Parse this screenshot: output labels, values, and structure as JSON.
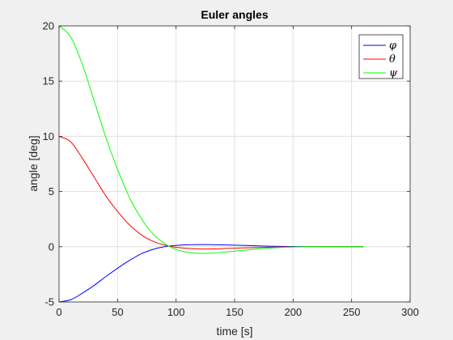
{
  "chart_data": {
    "type": "line",
    "title": "Euler angles",
    "xlabel": "time [s]",
    "ylabel": "angle [deg]",
    "xlim": [
      0,
      300
    ],
    "ylim": [
      -5,
      20
    ],
    "xticks": [
      "0",
      "50",
      "100",
      "150",
      "200",
      "250",
      "300"
    ],
    "yticks": [
      "-5",
      "0",
      "5",
      "10",
      "15",
      "20"
    ],
    "grid": true,
    "legend_position": "top-right",
    "series": [
      {
        "name": "φ",
        "color": "#0000ff",
        "x": [
          0,
          10,
          20,
          30,
          40,
          50,
          60,
          70,
          80,
          90,
          100,
          110,
          120,
          130,
          140,
          150,
          160,
          170,
          180,
          190,
          200,
          210,
          220,
          230,
          240,
          250,
          260
        ],
        "y": [
          -5.0,
          -4.8,
          -4.2,
          -3.5,
          -2.7,
          -1.95,
          -1.25,
          -0.65,
          -0.25,
          0.0,
          0.12,
          0.18,
          0.2,
          0.19,
          0.17,
          0.14,
          0.11,
          0.08,
          0.05,
          0.03,
          0.02,
          0.01,
          0.005,
          0.0,
          0.0,
          0.0,
          0.0
        ]
      },
      {
        "name": "θ",
        "color": "#ff0000",
        "x": [
          0,
          10,
          20,
          30,
          40,
          50,
          60,
          70,
          80,
          90,
          100,
          110,
          120,
          130,
          140,
          150,
          160,
          170,
          180,
          190,
          200,
          210,
          220,
          230,
          240,
          250,
          260
        ],
        "y": [
          10.0,
          9.5,
          8.0,
          6.3,
          4.6,
          3.2,
          2.0,
          1.1,
          0.5,
          0.15,
          -0.05,
          -0.15,
          -0.2,
          -0.2,
          -0.17,
          -0.13,
          -0.1,
          -0.07,
          -0.04,
          -0.02,
          -0.01,
          0.0,
          0.0,
          0.0,
          0.0,
          0.0,
          0.0
        ]
      },
      {
        "name": "ψ",
        "color": "#00ff00",
        "x": [
          0,
          10,
          20,
          30,
          40,
          50,
          60,
          70,
          80,
          90,
          100,
          110,
          120,
          130,
          140,
          150,
          160,
          170,
          180,
          190,
          200,
          210,
          220,
          230,
          240,
          250,
          260
        ],
        "y": [
          20.0,
          19.0,
          16.5,
          13.2,
          9.9,
          7.0,
          4.5,
          2.6,
          1.2,
          0.3,
          -0.25,
          -0.5,
          -0.6,
          -0.58,
          -0.5,
          -0.4,
          -0.3,
          -0.2,
          -0.12,
          -0.06,
          -0.02,
          0.0,
          0.0,
          0.0,
          0.0,
          0.0,
          0.0
        ]
      }
    ]
  }
}
